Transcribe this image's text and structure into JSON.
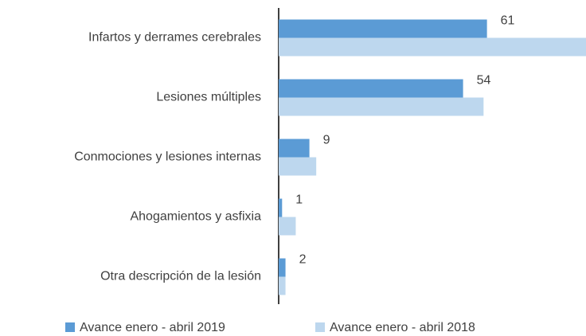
{
  "chart_data": {
    "type": "hbar",
    "categories": [
      "Infartos y derrames cerebrales",
      "Lesiones múltiples",
      "Conmociones y lesiones internas",
      "Ahogamientos y asfixia",
      "Otra descripción de la lesión"
    ],
    "series": [
      {
        "name": "Avance enero - abril 2019",
        "color": "#5b9bd5",
        "values": [
          61,
          54,
          9,
          1,
          2
        ]
      },
      {
        "name": "Avance enero - abril 2018",
        "color": "#bdd7ee",
        "values": [
          90,
          60,
          11,
          5,
          2
        ]
      }
    ],
    "xlim": [
      0,
      90
    ],
    "legend": "bottom"
  }
}
